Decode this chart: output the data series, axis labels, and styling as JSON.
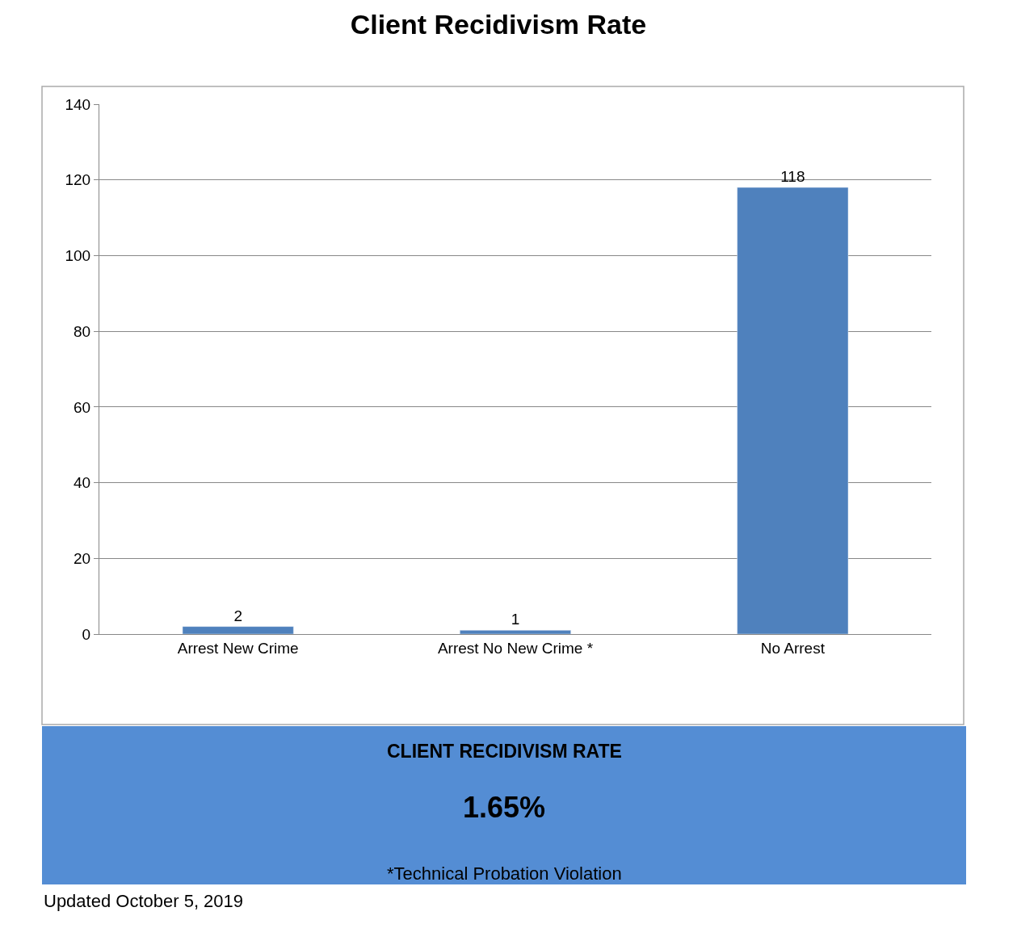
{
  "chart_data": {
    "type": "bar",
    "title": "Client Recidivism Rate",
    "categories": [
      "Arrest New Crime",
      "Arrest No New Crime *",
      "No Arrest"
    ],
    "values": [
      2,
      1,
      118
    ],
    "color": "#4f81bd",
    "data_labels": true,
    "ylim": [
      0,
      140
    ],
    "yticks": [
      0,
      20,
      40,
      60,
      80,
      100,
      120,
      140
    ],
    "grid": "y",
    "legend": false,
    "annotations": [
      "CLIENT RECIDIVISM RATE",
      "1.65%",
      "*Technical Probation Violation",
      "Updated October 5, 2019"
    ]
  }
}
